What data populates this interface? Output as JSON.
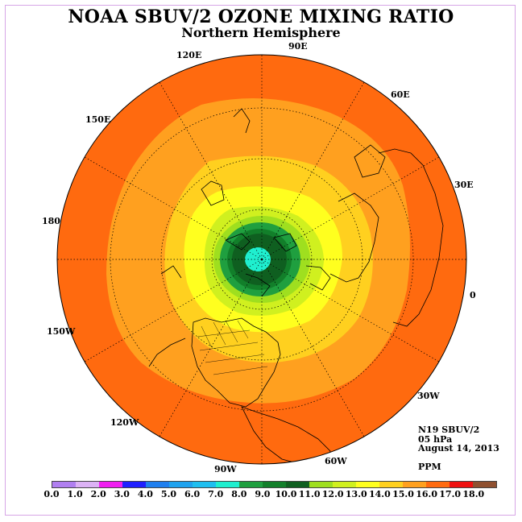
{
  "title": "NOAA SBUV/2 OZONE MIXING RATIO",
  "subtitle": "Northern Hemisphere",
  "longitude_labels": [
    "90E",
    "60E",
    "30E",
    "0",
    "30W",
    "60W",
    "90W",
    "120W",
    "150W",
    "180",
    "150E",
    "120E"
  ],
  "info": {
    "instrument": "N19 SBUV/2",
    "pressure": "05 hPa",
    "date": "August 14, 2013",
    "units": "PPM"
  },
  "colorbar": {
    "ticks": [
      "0.0",
      "1.0",
      "2.0",
      "3.0",
      "4.0",
      "5.0",
      "6.0",
      "7.0",
      "8.0",
      "9.0",
      "10.0",
      "11.0",
      "12.0",
      "13.0",
      "14.0",
      "15.0",
      "16.0",
      "17.0",
      "18.0"
    ],
    "colors": [
      "#b07ff0",
      "#dcb2f5",
      "#f01ff0",
      "#2020ff",
      "#1f7fef",
      "#1fa3ef",
      "#1fbff0",
      "#1fefcf",
      "#1f9f3f",
      "#127f2a",
      "#0f5f20",
      "#9fdf1f",
      "#d0f01f",
      "#ffff1f",
      "#ffd01f",
      "#ffa01f",
      "#ff6a0f",
      "#ef0f0f",
      "#8f5030"
    ]
  },
  "map_colors": {
    "outer": "#ff6a0f",
    "band_15": "#ffa01f",
    "band_14": "#ffd01f",
    "band_13": "#ffff1f",
    "band_12": "#d0f01f",
    "band_11": "#9fdf1f",
    "band_10": "#1f9f3f",
    "band_9": "#127f2a",
    "band_8": "#0f5f20",
    "center": "#1fefcf"
  }
}
